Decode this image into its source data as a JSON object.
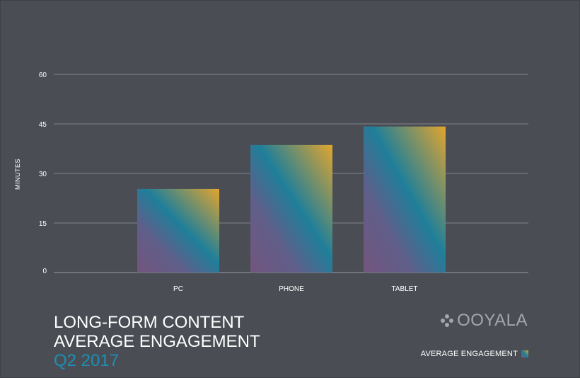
{
  "title": {
    "line1": "LONG-FORM CONTENT",
    "line2": "AVERAGE ENGAGEMENT",
    "subtitle": "Q2 2017"
  },
  "brand": {
    "name": "OOYALA",
    "icon": "ooyala-dots-logo"
  },
  "legend": {
    "label": "AVERAGE ENGAGEMENT"
  },
  "colors": {
    "background": "#4a4e54",
    "gradient_top": "#e2a52e",
    "gradient_mid": "#1f7f9a",
    "gradient_bottom": "#73557e",
    "subtitle": "#1c8fb5"
  },
  "chart_data": {
    "type": "bar",
    "categories": [
      "PC",
      "PHONE",
      "TABLET"
    ],
    "values": [
      25.3,
      38.6,
      44.2
    ],
    "ylabel": "MINUTES",
    "xlabel": "",
    "ylim": [
      0,
      60
    ],
    "yticks": [
      0,
      15,
      30,
      45,
      60
    ],
    "grid": true,
    "legend_position": "bottom-right"
  }
}
